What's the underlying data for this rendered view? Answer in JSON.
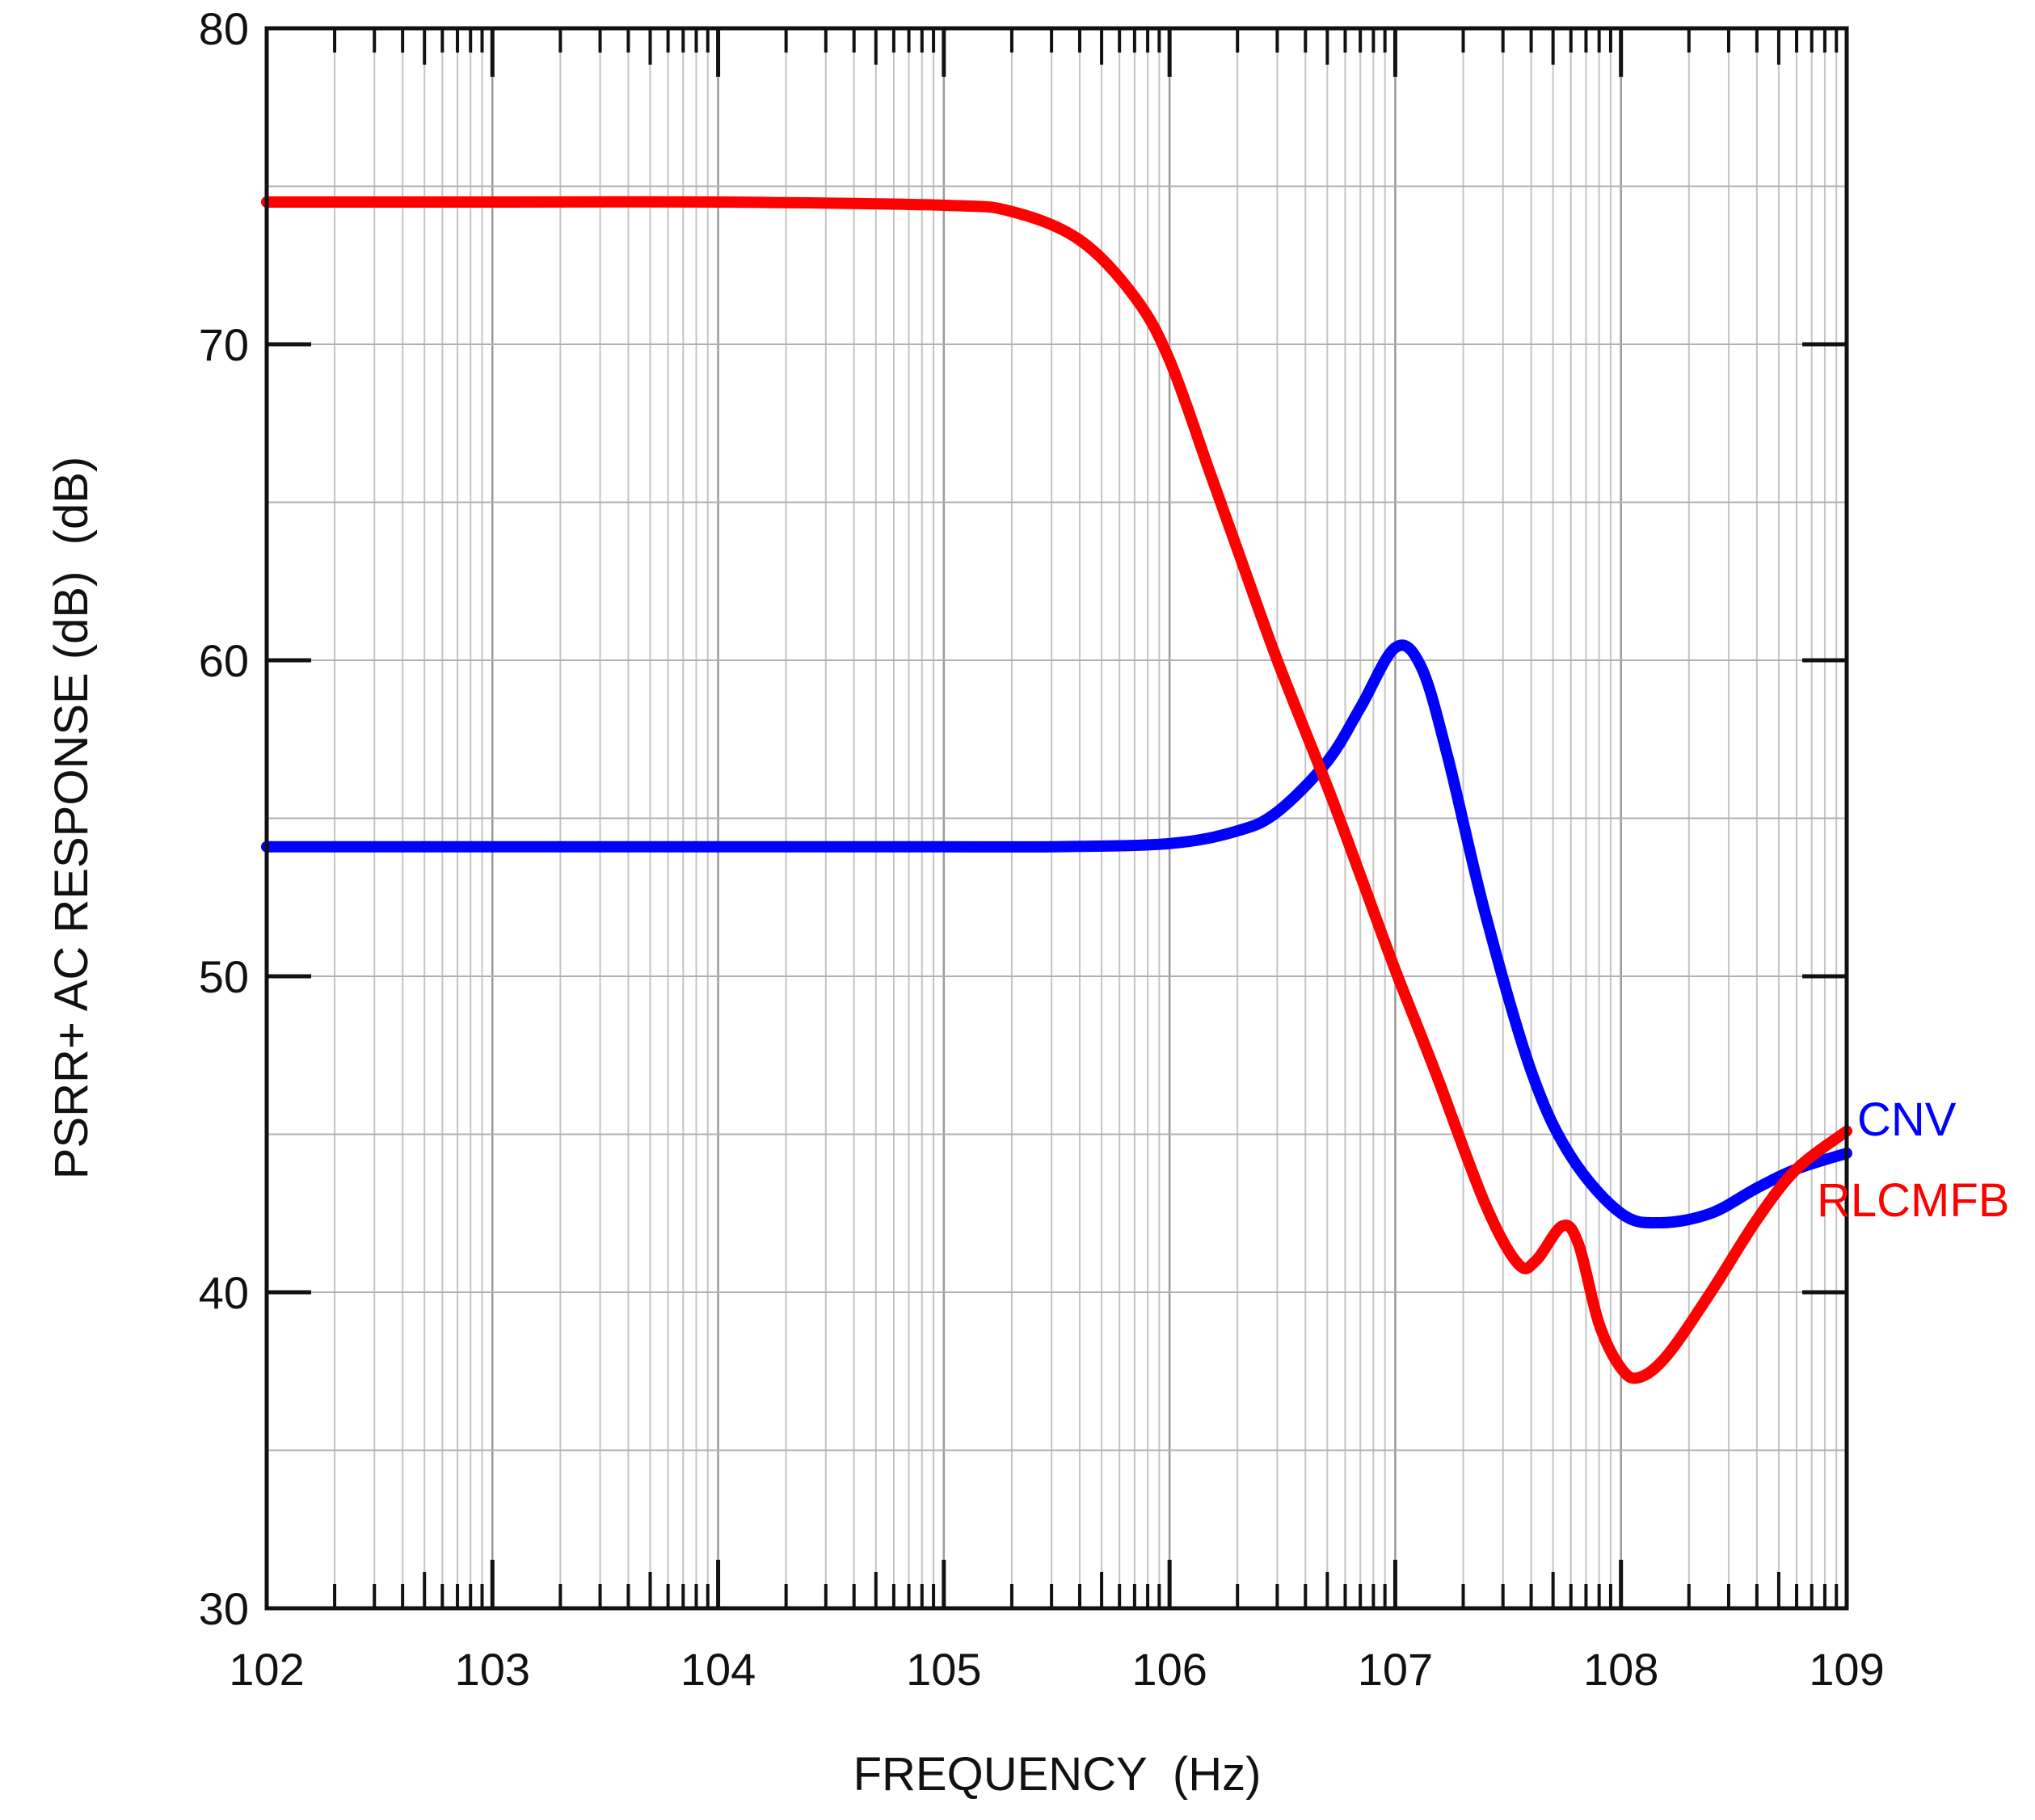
{
  "chart_data": {
    "type": "line",
    "title": "",
    "xlabel": "FREQUENCY  (Hz)",
    "ylabel": "PSRR+ AC RESPONSE (dB)  (dB)",
    "x_scale": "log",
    "xlim": [
      100,
      1000000000
    ],
    "ylim": [
      30,
      80
    ],
    "grid": true,
    "x_tick_values": [
      100,
      1000,
      10000,
      100000,
      1000000,
      10000000,
      100000000,
      1000000000
    ],
    "x_tick_labels": [
      "102",
      "103",
      "104",
      "105",
      "106",
      "107",
      "108",
      "109"
    ],
    "y_ticks": [
      30,
      40,
      50,
      60,
      70,
      80
    ],
    "y_tick_labels": [
      "30",
      "40",
      "50",
      "60",
      "70",
      "80"
    ],
    "series": [
      {
        "name": "CNV",
        "color": "#0000ff",
        "points": [
          [
            100,
            54.1
          ],
          [
            1000,
            54.1
          ],
          [
            10000,
            54.1
          ],
          [
            100000,
            54.1
          ],
          [
            300000,
            54.1
          ],
          [
            1000000,
            54.2
          ],
          [
            2000000,
            54.6
          ],
          [
            3000000,
            55.2
          ],
          [
            5000000,
            56.8
          ],
          [
            7000000,
            58.5
          ],
          [
            10000000,
            60.4
          ],
          [
            13000000,
            59.8
          ],
          [
            17000000,
            57.0
          ],
          [
            25000000,
            52.0
          ],
          [
            40000000,
            47.0
          ],
          [
            60000000,
            44.3
          ],
          [
            100000000,
            42.5
          ],
          [
            150000000,
            42.2
          ],
          [
            250000000,
            42.5
          ],
          [
            400000000,
            43.3
          ],
          [
            600000000,
            43.9
          ],
          [
            1000000000,
            44.4
          ]
        ]
      },
      {
        "name": "RLCMFB",
        "color": "#ff0000",
        "points": [
          [
            100,
            74.5
          ],
          [
            1000,
            74.5
          ],
          [
            10000,
            74.5
          ],
          [
            100000,
            74.4
          ],
          [
            200000,
            74.2
          ],
          [
            400000,
            73.3
          ],
          [
            700000,
            71.5
          ],
          [
            1000000,
            69.5
          ],
          [
            1500000,
            66.0
          ],
          [
            2000000,
            63.5
          ],
          [
            3000000,
            60.0
          ],
          [
            5000000,
            56.0
          ],
          [
            7000000,
            53.2
          ],
          [
            10000000,
            50.2
          ],
          [
            15000000,
            47.0
          ],
          [
            25000000,
            42.8
          ],
          [
            35000000,
            40.9
          ],
          [
            42000000,
            41.0
          ],
          [
            55000000,
            42.1
          ],
          [
            65000000,
            41.5
          ],
          [
            80000000,
            39.0
          ],
          [
            100000000,
            37.6
          ],
          [
            120000000,
            37.3
          ],
          [
            160000000,
            38.0
          ],
          [
            250000000,
            40.0
          ],
          [
            400000000,
            42.3
          ],
          [
            600000000,
            43.9
          ],
          [
            1000000000,
            45.1
          ]
        ]
      }
    ],
    "series_labels": [
      "CNV",
      "RLCMFB"
    ]
  }
}
